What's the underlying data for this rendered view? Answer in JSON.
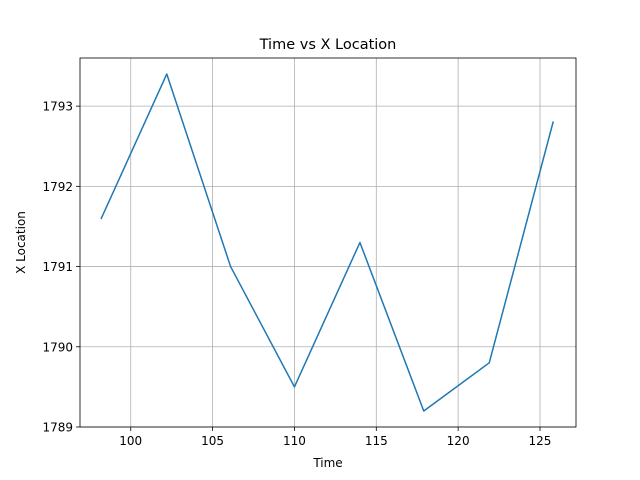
{
  "chart_data": {
    "type": "line",
    "title": "Time vs X Location",
    "xlabel": "Time",
    "ylabel": "X Location",
    "xlim": [
      96.9,
      127.2
    ],
    "ylim": [
      1789,
      1793.6
    ],
    "xticks": [
      100,
      105,
      110,
      115,
      120,
      125
    ],
    "yticks": [
      1789,
      1790,
      1791,
      1792,
      1793
    ],
    "grid": true,
    "legend": "none",
    "series": [
      {
        "color": "#1f77b4",
        "x": [
          98.2,
          102.2,
          106.1,
          110.0,
          114.0,
          117.9,
          121.9,
          125.8
        ],
        "y": [
          1791.6,
          1793.4,
          1791.0,
          1789.5,
          1791.3,
          1789.2,
          1789.8,
          1792.8
        ]
      }
    ]
  }
}
